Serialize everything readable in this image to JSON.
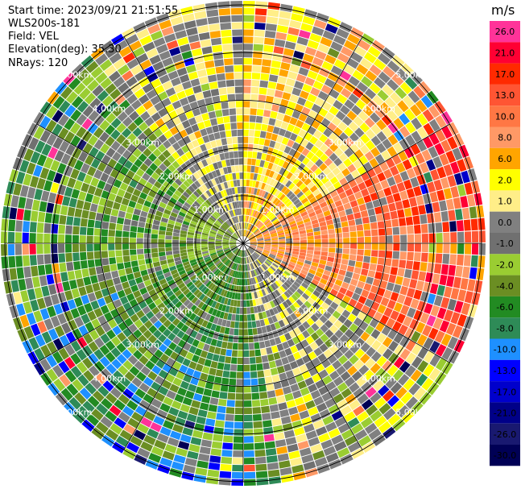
{
  "info": {
    "start_time": "Start time: 2023/09/21 21:51:55",
    "site": "WLS200s-181",
    "field": "Field: VEL",
    "elevation": "Elevation(deg): 35.30",
    "nrays": "NRays: 120"
  },
  "chart_data": {
    "type": "heatmap",
    "projection": "polar-ppi",
    "field": "VEL",
    "unit": "m/s",
    "n_rays": 120,
    "elevation_deg": 35.3,
    "range_rings_km": [
      1.0,
      2.0,
      3.0,
      4.0,
      5.0
    ],
    "range_ring_labels": [
      "1.00km",
      "2.00km",
      "3.00km",
      "4.00km",
      "5.00km"
    ],
    "colorbar": {
      "title": "m/s",
      "ticks": [
        "26.0",
        "21.0",
        "17.0",
        "13.0",
        "10.0",
        "8.0",
        "6.0",
        "2.0",
        "1.0",
        "0.0",
        "-1.0",
        "-2.0",
        "-4.0",
        "-6.0",
        "-8.0",
        "-10.0",
        "-13.0",
        "-17.0",
        "-21.0",
        "-26.0",
        "-30.0"
      ],
      "colors": [
        "#ff3399",
        "#ff0033",
        "#ff2a00",
        "#ff5533",
        "#ff7744",
        "#ff9966",
        "#ffa500",
        "#ffff00",
        "#ffee88",
        "#808080",
        "#707070",
        "#9acd32",
        "#6b8e23",
        "#228b22",
        "#2e8b57",
        "#1e90ff",
        "#0000ff",
        "#0000cc",
        "#000088",
        "#191970",
        "#000055"
      ]
    },
    "sectors": [
      {
        "azimuth_from": 0,
        "azimuth_to": 60,
        "dominant": "positive, 1 to 6 m/s (yellow/orange)"
      },
      {
        "azimuth_from": 60,
        "azimuth_to": 120,
        "dominant": "positive, 2 to 13 m/s (yellow/orange/red)"
      },
      {
        "azimuth_from": 120,
        "azimuth_to": 170,
        "dominant": "mixed, -2 to 2 m/s"
      },
      {
        "azimuth_from": 170,
        "azimuth_to": 250,
        "dominant": "negative, -2 to -8 m/s (green)"
      },
      {
        "azimuth_from": 250,
        "azimuth_to": 320,
        "dominant": "mixed, -6 to 0 m/s (green/gray)"
      },
      {
        "azimuth_from": 320,
        "azimuth_to": 360,
        "dominant": "mixed, 0 to 2 m/s (gray/yellow)"
      }
    ]
  }
}
